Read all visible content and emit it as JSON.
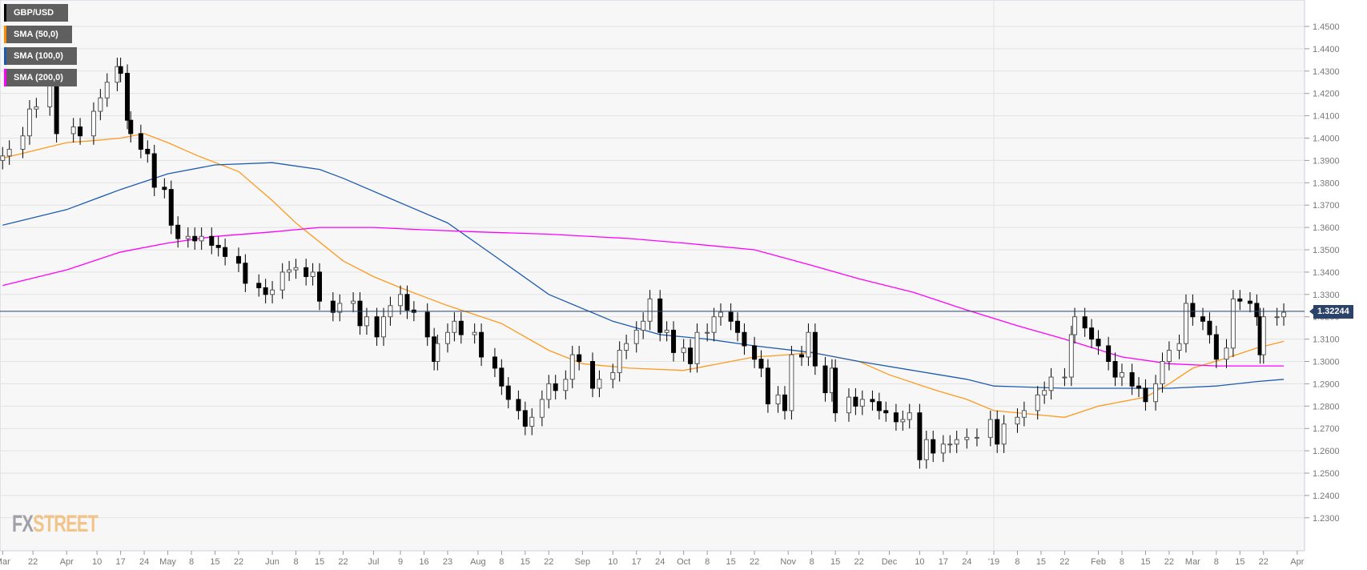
{
  "legend": [
    {
      "label": "GBP/USD",
      "color": "#000000"
    },
    {
      "label": "SMA (50,0)",
      "color": "#ff8c00"
    },
    {
      "label": "SMA (100,0)",
      "color": "#1e5bb0"
    },
    {
      "label": "SMA (200,0)",
      "color": "#ff00ff"
    }
  ],
  "logo": {
    "part1": "FX",
    "part2": "STREET"
  },
  "chart_data": {
    "type": "candlestick",
    "title": "GBP/USD",
    "ylim": [
      1.22,
      1.458
    ],
    "current_price": 1.32244,
    "current_price_label": "1.32244",
    "y_ticks": [
      "1.4500",
      "1.4400",
      "1.4300",
      "1.4200",
      "1.4100",
      "1.4000",
      "1.3900",
      "1.3800",
      "1.3700",
      "1.3600",
      "1.3500",
      "1.3400",
      "1.3300",
      "1.3200",
      "1.3100",
      "1.3000",
      "1.2900",
      "1.2800",
      "1.2700",
      "1.2600",
      "1.2500",
      "1.2400",
      "1.2300"
    ],
    "x_ticks": [
      [
        "Mar",
        "2018-03-13"
      ],
      [
        "22",
        "2018-03-22"
      ],
      [
        "Apr",
        "2018-04-01"
      ],
      [
        "10",
        "2018-04-10"
      ],
      [
        "17",
        "2018-04-17"
      ],
      [
        "24",
        "2018-04-24"
      ],
      [
        "May",
        "2018-05-01"
      ],
      [
        "8",
        "2018-05-08"
      ],
      [
        "15",
        "2018-05-15"
      ],
      [
        "22",
        "2018-05-22"
      ],
      [
        "Jun",
        "2018-06-01"
      ],
      [
        "8",
        "2018-06-08"
      ],
      [
        "15",
        "2018-06-15"
      ],
      [
        "22",
        "2018-06-22"
      ],
      [
        "Jul",
        "2018-07-01"
      ],
      [
        "9",
        "2018-07-09"
      ],
      [
        "16",
        "2018-07-16"
      ],
      [
        "23",
        "2018-07-23"
      ],
      [
        "Aug",
        "2018-08-01"
      ],
      [
        "8",
        "2018-08-08"
      ],
      [
        "15",
        "2018-08-15"
      ],
      [
        "22",
        "2018-08-22"
      ],
      [
        "Sep",
        "2018-09-01"
      ],
      [
        "10",
        "2018-09-10"
      ],
      [
        "17",
        "2018-09-17"
      ],
      [
        "24",
        "2018-09-24"
      ],
      [
        "Oct",
        "2018-10-01"
      ],
      [
        "8",
        "2018-10-08"
      ],
      [
        "15",
        "2018-10-15"
      ],
      [
        "22",
        "2018-10-22"
      ],
      [
        "Nov",
        "2018-11-01"
      ],
      [
        "8",
        "2018-11-08"
      ],
      [
        "15",
        "2018-11-15"
      ],
      [
        "22",
        "2018-11-22"
      ],
      [
        "Dec",
        "2018-12-01"
      ],
      [
        "10",
        "2018-12-10"
      ],
      [
        "17",
        "2018-12-17"
      ],
      [
        "24",
        "2018-12-24"
      ],
      [
        "'19",
        "2019-01-01"
      ],
      [
        "8",
        "2019-01-08"
      ],
      [
        "15",
        "2019-01-15"
      ],
      [
        "22",
        "2019-01-22"
      ],
      [
        "Feb",
        "2019-02-01"
      ],
      [
        "8",
        "2019-02-08"
      ],
      [
        "15",
        "2019-02-15"
      ],
      [
        "22",
        "2019-02-22"
      ],
      [
        "Mar",
        "2019-03-01"
      ],
      [
        "8",
        "2019-03-08"
      ],
      [
        "15",
        "2019-03-15"
      ],
      [
        "22",
        "2019-03-22"
      ],
      [
        "Apr",
        "2019-04-01"
      ]
    ],
    "closes": [
      [
        "2018-03-13",
        1.392
      ],
      [
        "2018-03-15",
        1.395
      ],
      [
        "2018-03-19",
        1.401
      ],
      [
        "2018-03-21",
        1.413
      ],
      [
        "2018-03-23",
        1.414
      ],
      [
        "2018-03-27",
        1.424
      ],
      [
        "2018-03-29",
        1.402
      ],
      [
        "2018-04-03",
        1.405
      ],
      [
        "2018-04-05",
        1.401
      ],
      [
        "2018-04-09",
        1.412
      ],
      [
        "2018-04-11",
        1.418
      ],
      [
        "2018-04-13",
        1.425
      ],
      [
        "2018-04-16",
        1.432
      ],
      [
        "2018-04-17",
        1.429
      ],
      [
        "2018-04-19",
        1.408
      ],
      [
        "2018-04-20",
        1.402
      ],
      [
        "2018-04-23",
        1.395
      ],
      [
        "2018-04-25",
        1.393
      ],
      [
        "2018-04-27",
        1.378
      ],
      [
        "2018-04-30",
        1.377
      ],
      [
        "2018-05-02",
        1.361
      ],
      [
        "2018-05-04",
        1.355
      ],
      [
        "2018-05-07",
        1.356
      ],
      [
        "2018-05-09",
        1.354
      ],
      [
        "2018-05-11",
        1.356
      ],
      [
        "2018-05-14",
        1.352
      ],
      [
        "2018-05-16",
        1.351
      ],
      [
        "2018-05-18",
        1.347
      ],
      [
        "2018-05-22",
        1.344
      ],
      [
        "2018-05-24",
        1.335
      ],
      [
        "2018-05-28",
        1.333
      ],
      [
        "2018-05-30",
        1.33
      ],
      [
        "2018-06-01",
        1.332
      ],
      [
        "2018-06-04",
        1.34
      ],
      [
        "2018-06-06",
        1.341
      ],
      [
        "2018-06-08",
        1.342
      ],
      [
        "2018-06-11",
        1.338
      ],
      [
        "2018-06-13",
        1.34
      ],
      [
        "2018-06-15",
        1.327
      ],
      [
        "2018-06-19",
        1.322
      ],
      [
        "2018-06-21",
        1.326
      ],
      [
        "2018-06-25",
        1.327
      ],
      [
        "2018-06-27",
        1.316
      ],
      [
        "2018-06-29",
        1.32
      ],
      [
        "2018-07-02",
        1.311
      ],
      [
        "2018-07-04",
        1.32
      ],
      [
        "2018-07-06",
        1.325
      ],
      [
        "2018-07-09",
        1.33
      ],
      [
        "2018-07-11",
        1.323
      ],
      [
        "2018-07-13",
        1.322
      ],
      [
        "2018-07-17",
        1.311
      ],
      [
        "2018-07-19",
        1.3
      ],
      [
        "2018-07-20",
        1.308
      ],
      [
        "2018-07-23",
        1.313
      ],
      [
        "2018-07-25",
        1.318
      ],
      [
        "2018-07-27",
        1.312
      ],
      [
        "2018-07-31",
        1.313
      ],
      [
        "2018-08-02",
        1.302
      ],
      [
        "2018-08-06",
        1.297
      ],
      [
        "2018-08-08",
        1.289
      ],
      [
        "2018-08-10",
        1.283
      ],
      [
        "2018-08-13",
        1.278
      ],
      [
        "2018-08-15",
        1.271
      ],
      [
        "2018-08-17",
        1.275
      ],
      [
        "2018-08-20",
        1.283
      ],
      [
        "2018-08-22",
        1.29
      ],
      [
        "2018-08-24",
        1.287
      ],
      [
        "2018-08-27",
        1.292
      ],
      [
        "2018-08-29",
        1.303
      ],
      [
        "2018-08-31",
        1.3
      ],
      [
        "2018-09-04",
        1.288
      ],
      [
        "2018-09-06",
        1.292
      ],
      [
        "2018-09-10",
        1.295
      ],
      [
        "2018-09-12",
        1.305
      ],
      [
        "2018-09-14",
        1.308
      ],
      [
        "2018-09-17",
        1.314
      ],
      [
        "2018-09-19",
        1.318
      ],
      [
        "2018-09-21",
        1.328
      ],
      [
        "2018-09-24",
        1.313
      ],
      [
        "2018-09-26",
        1.314
      ],
      [
        "2018-09-28",
        1.304
      ],
      [
        "2018-10-01",
        1.306
      ],
      [
        "2018-10-03",
        1.299
      ],
      [
        "2018-10-05",
        1.313
      ],
      [
        "2018-10-08",
        1.313
      ],
      [
        "2018-10-10",
        1.32
      ],
      [
        "2018-10-12",
        1.322
      ],
      [
        "2018-10-15",
        1.318
      ],
      [
        "2018-10-17",
        1.313
      ],
      [
        "2018-10-19",
        1.307
      ],
      [
        "2018-10-22",
        1.301
      ],
      [
        "2018-10-24",
        1.297
      ],
      [
        "2018-10-26",
        1.281
      ],
      [
        "2018-10-29",
        1.285
      ],
      [
        "2018-10-31",
        1.278
      ],
      [
        "2018-11-02",
        1.303
      ],
      [
        "2018-11-05",
        1.302
      ],
      [
        "2018-11-07",
        1.313
      ],
      [
        "2018-11-09",
        1.298
      ],
      [
        "2018-11-12",
        1.286
      ],
      [
        "2018-11-14",
        1.297
      ],
      [
        "2018-11-15",
        1.277
      ],
      [
        "2018-11-19",
        1.284
      ],
      [
        "2018-11-21",
        1.28
      ],
      [
        "2018-11-23",
        1.283
      ],
      [
        "2018-11-26",
        1.282
      ],
      [
        "2018-11-28",
        1.278
      ],
      [
        "2018-11-30",
        1.277
      ],
      [
        "2018-12-03",
        1.273
      ],
      [
        "2018-12-05",
        1.274
      ],
      [
        "2018-12-07",
        1.277
      ],
      [
        "2018-12-10",
        1.256
      ],
      [
        "2018-12-12",
        1.265
      ],
      [
        "2018-12-14",
        1.259
      ],
      [
        "2018-12-17",
        1.263
      ],
      [
        "2018-12-19",
        1.263
      ],
      [
        "2018-12-21",
        1.265
      ],
      [
        "2018-12-24",
        1.266
      ],
      [
        "2018-12-27",
        1.266
      ],
      [
        "2018-12-31",
        1.274
      ],
      [
        "2019-01-02",
        1.263
      ],
      [
        "2019-01-04",
        1.272
      ],
      [
        "2019-01-08",
        1.275
      ],
      [
        "2019-01-10",
        1.278
      ],
      [
        "2019-01-14",
        1.285
      ],
      [
        "2019-01-16",
        1.287
      ],
      [
        "2019-01-18",
        1.293
      ],
      [
        "2019-01-22",
        1.293
      ],
      [
        "2019-01-24",
        1.312
      ],
      [
        "2019-01-25",
        1.32
      ],
      [
        "2019-01-28",
        1.315
      ],
      [
        "2019-01-30",
        1.31
      ],
      [
        "2019-02-01",
        1.307
      ],
      [
        "2019-02-04",
        1.3
      ],
      [
        "2019-02-06",
        1.293
      ],
      [
        "2019-02-08",
        1.295
      ],
      [
        "2019-02-11",
        1.289
      ],
      [
        "2019-02-13",
        1.288
      ],
      [
        "2019-02-15",
        1.282
      ],
      [
        "2019-02-18",
        1.29
      ],
      [
        "2019-02-20",
        1.3
      ],
      [
        "2019-02-22",
        1.305
      ],
      [
        "2019-02-25",
        1.308
      ],
      [
        "2019-02-27",
        1.326
      ],
      [
        "2019-03-01",
        1.32
      ],
      [
        "2019-03-04",
        1.318
      ],
      [
        "2019-03-06",
        1.312
      ],
      [
        "2019-03-08",
        1.301
      ],
      [
        "2019-03-11",
        1.306
      ],
      [
        "2019-03-13",
        1.328
      ],
      [
        "2019-03-15",
        1.327
      ],
      [
        "2019-03-18",
        1.326
      ],
      [
        "2019-03-20",
        1.32
      ],
      [
        "2019-03-21",
        1.303
      ],
      [
        "2019-03-22",
        1.32
      ],
      [
        "2019-03-26",
        1.32
      ],
      [
        "2019-03-28",
        1.322
      ]
    ],
    "series": [
      {
        "name": "SMA (50,0)",
        "color": "#ff9a1f",
        "points": [
          [
            "2018-03-13",
            1.391
          ],
          [
            "2018-04-01",
            1.398
          ],
          [
            "2018-04-10",
            1.399
          ],
          [
            "2018-04-17",
            1.4
          ],
          [
            "2018-04-24",
            1.402
          ],
          [
            "2018-05-01",
            1.398
          ],
          [
            "2018-05-10",
            1.392
          ],
          [
            "2018-05-22",
            1.385
          ],
          [
            "2018-06-01",
            1.372
          ],
          [
            "2018-06-08",
            1.362
          ],
          [
            "2018-06-22",
            1.345
          ],
          [
            "2018-07-01",
            1.338
          ],
          [
            "2018-07-09",
            1.333
          ],
          [
            "2018-07-23",
            1.325
          ],
          [
            "2018-08-08",
            1.317
          ],
          [
            "2018-08-22",
            1.305
          ],
          [
            "2018-09-01",
            1.299
          ],
          [
            "2018-09-15",
            1.297
          ],
          [
            "2018-10-01",
            1.296
          ],
          [
            "2018-10-15",
            1.3
          ],
          [
            "2018-10-22",
            1.302
          ],
          [
            "2018-11-01",
            1.303
          ],
          [
            "2018-11-08",
            1.304
          ],
          [
            "2018-11-22",
            1.3
          ],
          [
            "2018-12-01",
            1.294
          ],
          [
            "2018-12-15",
            1.287
          ],
          [
            "2018-12-24",
            1.283
          ],
          [
            "2019-01-01",
            1.278
          ],
          [
            "2019-01-15",
            1.276
          ],
          [
            "2019-01-22",
            1.275
          ],
          [
            "2019-02-01",
            1.28
          ],
          [
            "2019-02-15",
            1.284
          ],
          [
            "2019-02-22",
            1.29
          ],
          [
            "2019-03-01",
            1.297
          ],
          [
            "2019-03-12",
            1.302
          ],
          [
            "2019-03-20",
            1.306
          ],
          [
            "2019-03-28",
            1.309
          ]
        ]
      },
      {
        "name": "SMA (100,0)",
        "color": "#1e5bb0",
        "points": [
          [
            "2018-03-13",
            1.361
          ],
          [
            "2018-04-01",
            1.368
          ],
          [
            "2018-04-17",
            1.377
          ],
          [
            "2018-05-01",
            1.384
          ],
          [
            "2018-05-15",
            1.388
          ],
          [
            "2018-06-01",
            1.389
          ],
          [
            "2018-06-15",
            1.386
          ],
          [
            "2018-06-22",
            1.382
          ],
          [
            "2018-07-09",
            1.371
          ],
          [
            "2018-07-23",
            1.362
          ],
          [
            "2018-08-08",
            1.345
          ],
          [
            "2018-08-22",
            1.33
          ],
          [
            "2018-09-10",
            1.318
          ],
          [
            "2018-09-24",
            1.312
          ],
          [
            "2018-10-08",
            1.31
          ],
          [
            "2018-10-22",
            1.307
          ],
          [
            "2018-11-08",
            1.304
          ],
          [
            "2018-11-22",
            1.3
          ],
          [
            "2018-12-08",
            1.296
          ],
          [
            "2018-12-24",
            1.292
          ],
          [
            "2019-01-01",
            1.289
          ],
          [
            "2019-01-22",
            1.288
          ],
          [
            "2019-02-08",
            1.288
          ],
          [
            "2019-02-22",
            1.288
          ],
          [
            "2019-03-08",
            1.289
          ],
          [
            "2019-03-20",
            1.291
          ],
          [
            "2019-03-28",
            1.292
          ]
        ]
      },
      {
        "name": "SMA (200,0)",
        "color": "#ff00ff",
        "points": [
          [
            "2018-03-13",
            1.334
          ],
          [
            "2018-04-01",
            1.341
          ],
          [
            "2018-04-17",
            1.349
          ],
          [
            "2018-05-01",
            1.353
          ],
          [
            "2018-05-15",
            1.356
          ],
          [
            "2018-06-01",
            1.358
          ],
          [
            "2018-06-15",
            1.36
          ],
          [
            "2018-07-01",
            1.36
          ],
          [
            "2018-07-15",
            1.359
          ],
          [
            "2018-08-01",
            1.358
          ],
          [
            "2018-08-22",
            1.357
          ],
          [
            "2018-09-15",
            1.355
          ],
          [
            "2018-10-01",
            1.353
          ],
          [
            "2018-10-22",
            1.35
          ],
          [
            "2018-11-08",
            1.343
          ],
          [
            "2018-11-22",
            1.337
          ],
          [
            "2018-12-08",
            1.331
          ],
          [
            "2018-12-24",
            1.323
          ],
          [
            "2019-01-08",
            1.316
          ],
          [
            "2019-01-22",
            1.31
          ],
          [
            "2019-02-08",
            1.302
          ],
          [
            "2019-02-22",
            1.299
          ],
          [
            "2019-03-08",
            1.298
          ],
          [
            "2019-03-28",
            1.298
          ]
        ]
      }
    ]
  }
}
